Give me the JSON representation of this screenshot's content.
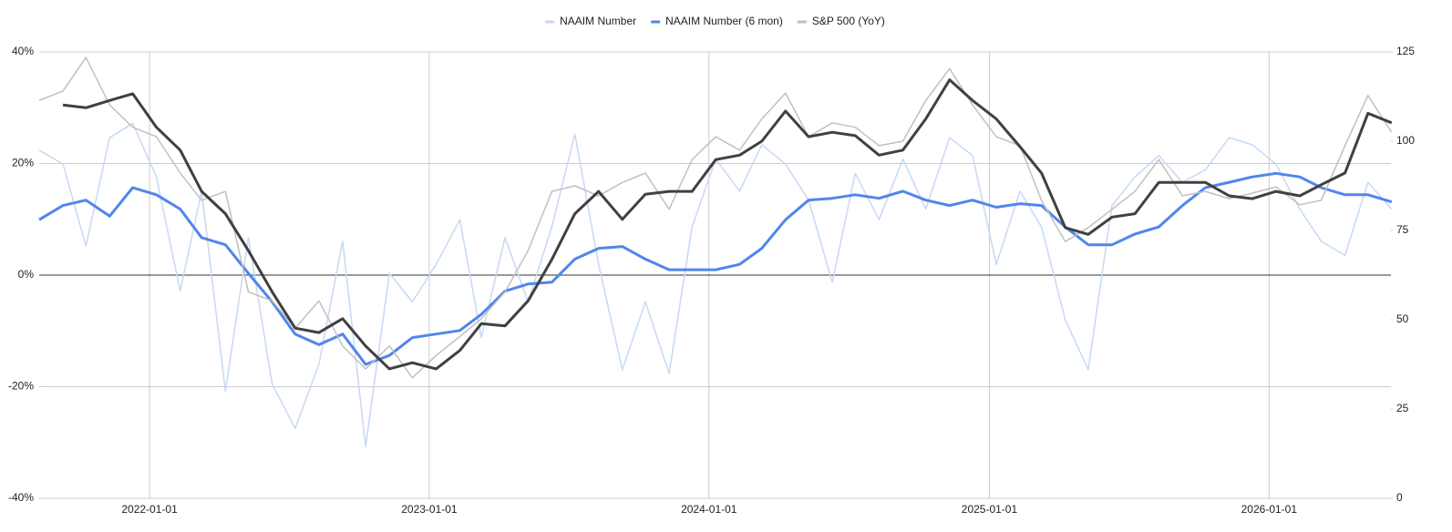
{
  "chart_data": {
    "type": "line",
    "x": [
      "2021-08-10",
      "2021-09-10",
      "2021-10-10",
      "2021-11-10",
      "2021-12-10",
      "2022-01-10",
      "2022-02-10",
      "2022-03-10",
      "2022-04-10",
      "2022-05-10",
      "2022-06-10",
      "2022-07-10",
      "2022-08-10",
      "2022-09-10",
      "2022-10-10",
      "2022-11-10",
      "2022-12-10",
      "2023-01-10",
      "2023-02-10",
      "2023-03-10",
      "2023-04-10",
      "2023-05-10",
      "2023-06-10",
      "2023-07-10",
      "2023-08-10",
      "2023-09-10",
      "2023-10-10",
      "2023-11-10",
      "2023-12-10",
      "2024-01-10",
      "2024-02-10",
      "2024-03-10",
      "2024-04-10",
      "2024-05-10",
      "2024-06-10",
      "2024-07-10",
      "2024-08-10",
      "2024-09-10",
      "2024-10-10",
      "2024-11-10",
      "2024-12-10",
      "2025-01-10",
      "2025-02-10",
      "2025-03-10",
      "2025-04-10",
      "2025-05-10",
      "2025-06-10",
      "2025-07-10",
      "2025-08-10",
      "2025-09-10",
      "2025-10-10",
      "2025-11-10",
      "2025-12-10",
      "2026-01-10",
      "2026-02-10",
      "2026-03-10",
      "2026-04-10",
      "2026-05-10",
      "2026-06-10"
    ],
    "series": [
      {
        "name": "NAAIM Number",
        "color": "#c6d9f5",
        "width": 1.5,
        "axis": "y2",
        "values": [
          97.5,
          93.6,
          70.7,
          101,
          105,
          90,
          58,
          86,
          30,
          73,
          32,
          19.6,
          37.5,
          72,
          14.5,
          63,
          55,
          65.5,
          78,
          45,
          73,
          55,
          76,
          102,
          65.5,
          36,
          55,
          35,
          76,
          95,
          86,
          99,
          93.6,
          83.5,
          60.5,
          91,
          78,
          95,
          81,
          101,
          96,
          65.5,
          86,
          76,
          50,
          36,
          82,
          90,
          96,
          88.5,
          92,
          101,
          99,
          93.6,
          81,
          72,
          68,
          88.5,
          81
        ]
      },
      {
        "name": "NAAIM Number (6 mon)",
        "color": "#5086ec",
        "width": 3,
        "axis": "y2",
        "values": [
          78,
          82,
          83.5,
          79,
          87,
          85,
          81,
          73,
          71,
          63,
          55,
          46,
          43,
          46,
          37.5,
          40,
          45,
          46,
          47,
          51.5,
          58,
          60,
          60.5,
          67,
          70,
          70.5,
          67,
          64,
          64,
          64,
          65.5,
          70,
          78,
          83.5,
          84,
          85,
          84,
          86,
          83.5,
          82,
          83.5,
          81.5,
          82.5,
          82,
          76,
          71,
          71,
          74,
          76,
          82,
          87,
          88.5,
          90,
          91,
          90,
          87,
          85,
          85,
          83
        ]
      },
      {
        "name": "S&P 500 (YoY)",
        "color": "#c0c0c0",
        "width": 1.5,
        "values": [
          31.3,
          33,
          39,
          30.5,
          26.5,
          24.8,
          18.3,
          13.4,
          15,
          -3,
          -4.6,
          -9.5,
          -4.6,
          -12.7,
          -16.8,
          -12.7,
          -18.4,
          -14.4,
          -11,
          -7.8,
          -3,
          4.4,
          15,
          16,
          14.2,
          16.6,
          18.3,
          11.8,
          20.7,
          24.8,
          22.4,
          28,
          32.6,
          24.8,
          27.3,
          26.5,
          23.2,
          24,
          31.3,
          37,
          30.5,
          24.8,
          23.2,
          13.4,
          6,
          8.5,
          11.8,
          15,
          20.7,
          14.2,
          15,
          13.7,
          14.7,
          15.8,
          12.6,
          13.4,
          23.2,
          32.2,
          25.6
        ]
      },
      {
        "color": "#404040",
        "width": 3,
        "values": [
          null,
          30.5,
          30,
          31.3,
          32.5,
          26.5,
          22.4,
          15,
          11,
          4.4,
          -3,
          -9.5,
          -10.3,
          -7.8,
          -12.7,
          -16.8,
          -15.7,
          -16.8,
          -13.5,
          -8.7,
          -9.1,
          -4.6,
          2.8,
          11,
          15,
          10,
          14.5,
          15,
          15,
          20.7,
          21.5,
          24,
          29.4,
          24.8,
          25.6,
          25,
          21.5,
          22.4,
          28,
          35,
          31.3,
          28,
          23,
          18.3,
          8.5,
          7.3,
          10.4,
          11,
          16.6,
          16.6,
          16.6,
          14.2,
          13.7,
          15,
          14.2,
          16.2,
          18.3,
          29,
          27.3
        ]
      }
    ],
    "xlim": [
      "2021-08-10",
      "2026-06-09"
    ],
    "xticks": [
      "2022-01-01",
      "2023-01-01",
      "2024-01-01",
      "2025-01-01",
      "2026-01-01"
    ],
    "ylim": [
      -40,
      40
    ],
    "yticks": [
      {
        "value": -40,
        "label": "-40%"
      },
      {
        "value": -20,
        "label": "-20%"
      },
      {
        "value": 0,
        "label": "0%"
      },
      {
        "value": 20,
        "label": "20%"
      },
      {
        "value": 40,
        "label": "40%"
      }
    ],
    "y2lim": [
      0,
      125
    ],
    "y2ticks": [
      0,
      25,
      50,
      75,
      100,
      125
    ],
    "grid": true,
    "legend": "top"
  }
}
